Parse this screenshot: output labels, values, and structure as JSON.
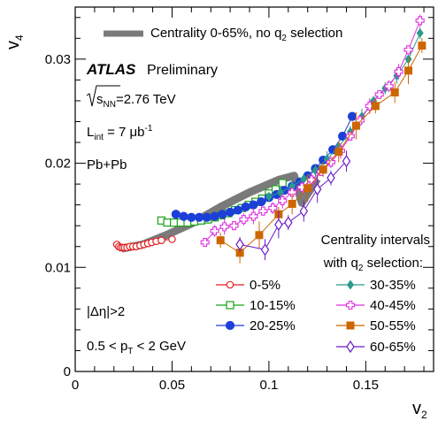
{
  "chart_data": {
    "type": "scatter",
    "xlabel": "v",
    "xlabel_sub": "2",
    "ylabel": "v",
    "ylabel_sub": "4",
    "xlim": [
      0,
      0.185
    ],
    "ylim": [
      0,
      0.035
    ],
    "x_ticks": [
      0,
      0.05,
      0.1,
      0.15
    ],
    "x_tick_labels": [
      "0",
      "0.05",
      "0.1",
      "0.15"
    ],
    "y_ticks": [
      0,
      0.01,
      0.02,
      0.03
    ],
    "y_tick_labels": [
      "0",
      "0.01",
      "0.02",
      "0.03"
    ],
    "grid": false,
    "band_legend": {
      "label_pre": "Centrality 0-65%, no q",
      "label_sub": "2",
      "label_post": " selection"
    },
    "band": {
      "color": "#7a7a7a",
      "points": [
        [
          0.024,
          0.0118
        ],
        [
          0.035,
          0.0122
        ],
        [
          0.047,
          0.0131
        ],
        [
          0.06,
          0.0142
        ],
        [
          0.075,
          0.0158
        ],
        [
          0.09,
          0.0172
        ],
        [
          0.105,
          0.0184
        ],
        [
          0.113,
          0.0188
        ],
        [
          0.117,
          0.0162
        ],
        [
          0.125,
          0.0185
        ]
      ]
    },
    "annotations": {
      "atlas": "ATLAS",
      "preliminary": "Preliminary",
      "sqrt_s_pre": "s",
      "sqrt_s_sub": "NN",
      "sqrt_s_val": "=2.76 TeV",
      "lumi_pre": "L",
      "lumi_sub": "int",
      "lumi_val": " = 7 μb",
      "lumi_sup": "-1",
      "system": "Pb+Pb",
      "eta_cut": "|Δη|>2",
      "pt_cut_pre": "0.5 < p",
      "pt_cut_sub": "T",
      "pt_cut_post": " < 2 GeV"
    },
    "legend_title_1": "Centrality intervals",
    "legend_title_2_pre": "with q",
    "legend_title_2_sub": "2",
    "legend_title_2_post": " selection:",
    "series": [
      {
        "name": "0-5%",
        "color": "#e02020",
        "marker": "open-circle",
        "x": [
          0.0215,
          0.0225,
          0.0235,
          0.0245,
          0.0255,
          0.0268,
          0.0282,
          0.0298,
          0.0315,
          0.0335,
          0.0355,
          0.0375,
          0.0395,
          0.0418,
          0.0445,
          0.05
        ],
        "y": [
          0.0122,
          0.012,
          0.0119,
          0.0119,
          0.0119,
          0.0119,
          0.012,
          0.012,
          0.012,
          0.0121,
          0.0122,
          0.0123,
          0.0124,
          0.0125,
          0.0126,
          0.0127
        ]
      },
      {
        "name": "10-15%",
        "color": "#16a316",
        "marker": "open-square",
        "x": [
          0.0445,
          0.0475,
          0.051,
          0.0545,
          0.058,
          0.0615,
          0.065,
          0.0685,
          0.072,
          0.0755,
          0.079,
          0.0825,
          0.086,
          0.0895,
          0.093,
          0.0965,
          0.1,
          0.1035,
          0.107
        ],
        "y": [
          0.0145,
          0.0143,
          0.0143,
          0.0143,
          0.0143,
          0.0144,
          0.0145,
          0.0146,
          0.0148,
          0.015,
          0.0152,
          0.0155,
          0.0157,
          0.016,
          0.0163,
          0.0166,
          0.0171,
          0.0175,
          0.0181
        ]
      },
      {
        "name": "20-25%",
        "color": "#1c3fd8",
        "marker": "filled-circle",
        "x": [
          0.052,
          0.056,
          0.06,
          0.064,
          0.068,
          0.072,
          0.076,
          0.08,
          0.084,
          0.088,
          0.092,
          0.096,
          0.1,
          0.104,
          0.108,
          0.112,
          0.116,
          0.12,
          0.124,
          0.128,
          0.133,
          0.138,
          0.143
        ],
        "y": [
          0.0151,
          0.0149,
          0.0148,
          0.0148,
          0.0148,
          0.0149,
          0.0151,
          0.0153,
          0.0155,
          0.0158,
          0.016,
          0.0163,
          0.0167,
          0.017,
          0.0174,
          0.0178,
          0.0182,
          0.0188,
          0.0195,
          0.0203,
          0.0213,
          0.0226,
          0.0245
        ]
      },
      {
        "name": "30-35%",
        "color": "#2a9a8c",
        "marker": "filled-diamond",
        "x": [
          0.1,
          0.106,
          0.112,
          0.118,
          0.124,
          0.13,
          0.136,
          0.142,
          0.148,
          0.154,
          0.16,
          0.166,
          0.172,
          0.178
        ],
        "y": [
          0.0168,
          0.0172,
          0.0178,
          0.0185,
          0.0193,
          0.0204,
          0.0216,
          0.023,
          0.0245,
          0.026,
          0.0272,
          0.0284,
          0.03,
          0.0325
        ]
      },
      {
        "name": "40-45%",
        "color": "#e02ee0",
        "marker": "open-cross",
        "x": [
          0.067,
          0.072,
          0.077,
          0.082,
          0.087,
          0.092,
          0.097,
          0.102,
          0.107,
          0.112,
          0.117,
          0.122,
          0.127,
          0.132,
          0.137,
          0.142,
          0.147,
          0.152,
          0.157,
          0.162,
          0.167,
          0.172,
          0.178
        ],
        "y": [
          0.0124,
          0.0135,
          0.0139,
          0.014,
          0.0146,
          0.0149,
          0.0154,
          0.0157,
          0.0164,
          0.0172,
          0.0177,
          0.0184,
          0.0192,
          0.0201,
          0.0212,
          0.0226,
          0.0241,
          0.0255,
          0.0266,
          0.0274,
          0.0288,
          0.0309,
          0.0337
        ]
      },
      {
        "name": "50-55%",
        "color": "#cc6600",
        "marker": "filled-square",
        "x": [
          0.075,
          0.085,
          0.095,
          0.105,
          0.112,
          0.12,
          0.128,
          0.136,
          0.145,
          0.155,
          0.165,
          0.172,
          0.179
        ],
        "y": [
          0.0126,
          0.0114,
          0.0131,
          0.0151,
          0.0161,
          0.0176,
          0.0194,
          0.0211,
          0.0236,
          0.0255,
          0.0268,
          0.0289,
          0.0313
        ]
      },
      {
        "name": "60-65%",
        "color": "#6a1cc8",
        "marker": "open-diamond",
        "x": [
          0.085,
          0.098,
          0.105,
          0.11,
          0.118,
          0.125,
          0.132,
          0.14
        ],
        "y": [
          0.0122,
          0.0117,
          0.0141,
          0.0143,
          0.0154,
          0.0175,
          0.0186,
          0.0202
        ]
      }
    ]
  }
}
